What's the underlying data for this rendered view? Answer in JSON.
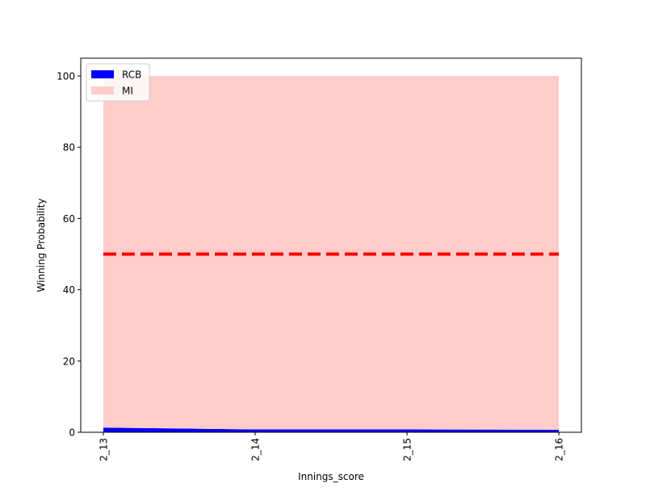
{
  "chart_data": {
    "type": "area",
    "categories": [
      "2_13",
      "2_14",
      "2_15",
      "2_16"
    ],
    "series": [
      {
        "name": "RCB",
        "values": [
          1.3,
          0.8,
          0.8,
          0.7
        ],
        "color": "#0000ff"
      },
      {
        "name": "MI",
        "values": [
          98.7,
          99.2,
          99.2,
          99.3
        ],
        "color": "#ffcccc"
      }
    ],
    "stacked": true,
    "reference_line": {
      "value": 50,
      "color": "#ff0000",
      "style": "dashed"
    },
    "xlabel": "Innings_score",
    "ylabel": "Winning Probability",
    "ylim": [
      0,
      105
    ],
    "yticks": [
      0,
      20,
      40,
      60,
      80,
      100
    ],
    "grid": false,
    "legend_position": "upper-left",
    "xtick_rotation": "vertical"
  }
}
